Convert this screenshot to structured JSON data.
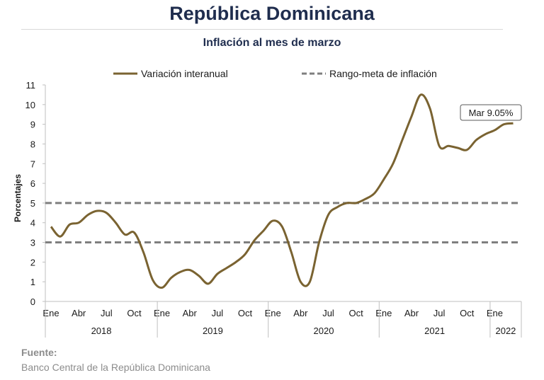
{
  "header": {
    "title": "República Dominicana",
    "subtitle": "Inflación al mes de marzo"
  },
  "source": {
    "label": "Fuente:",
    "text": "Banco Central de la República Dominicana"
  },
  "chart_data": {
    "type": "line",
    "ylabel": "Porcentajes",
    "ylim": [
      0,
      11
    ],
    "yticks": [
      0,
      1,
      2,
      3,
      4,
      5,
      6,
      7,
      8,
      9,
      10,
      11
    ],
    "grid": false,
    "legend_position": "top",
    "x_month_labels": [
      {
        "i": 0,
        "label": "Ene"
      },
      {
        "i": 3,
        "label": "Abr"
      },
      {
        "i": 6,
        "label": "Jul"
      },
      {
        "i": 9,
        "label": "Oct"
      },
      {
        "i": 12,
        "label": "Ene"
      },
      {
        "i": 15,
        "label": "Abr"
      },
      {
        "i": 18,
        "label": "Jul"
      },
      {
        "i": 21,
        "label": "Oct"
      },
      {
        "i": 24,
        "label": "Ene"
      },
      {
        "i": 27,
        "label": "Abr"
      },
      {
        "i": 30,
        "label": "Jul"
      },
      {
        "i": 33,
        "label": "Oct"
      },
      {
        "i": 36,
        "label": "Ene"
      },
      {
        "i": 39,
        "label": "Abr"
      },
      {
        "i": 42,
        "label": "Jul"
      },
      {
        "i": 45,
        "label": "Oct"
      },
      {
        "i": 48,
        "label": "Ene"
      }
    ],
    "x_years": [
      {
        "label": "2018",
        "start": 0,
        "end": 12
      },
      {
        "label": "2019",
        "start": 12,
        "end": 24
      },
      {
        "label": "2020",
        "start": 24,
        "end": 36
      },
      {
        "label": "2021",
        "start": 36,
        "end": 48
      },
      {
        "label": "2022",
        "start": 48,
        "end": 51
      }
    ],
    "series": [
      {
        "name": "Variación interanual",
        "color": "#7a6331",
        "style": "solid",
        "x_start": "2018-01",
        "values": [
          3.8,
          3.3,
          3.9,
          4.0,
          4.4,
          4.6,
          4.5,
          4.0,
          3.4,
          3.5,
          2.5,
          1.1,
          0.7,
          1.2,
          1.5,
          1.6,
          1.3,
          0.9,
          1.4,
          1.7,
          2.0,
          2.4,
          3.1,
          3.6,
          4.1,
          3.8,
          2.5,
          1.0,
          1.0,
          3.0,
          4.4,
          4.8,
          5.0,
          5.0,
          5.2,
          5.5,
          6.2,
          7.0,
          8.2,
          9.4,
          10.5,
          9.8,
          7.9,
          7.9,
          7.8,
          7.7,
          8.2,
          8.5,
          8.7,
          9.0,
          9.05
        ]
      },
      {
        "name": "Rango-meta de inflación",
        "color": "#7f7f7f",
        "style": "dashed",
        "values_constant": [
          3,
          5
        ]
      }
    ],
    "annotation": {
      "text": "Mar 9.05%",
      "x_index": 50,
      "value": 9.05
    }
  }
}
